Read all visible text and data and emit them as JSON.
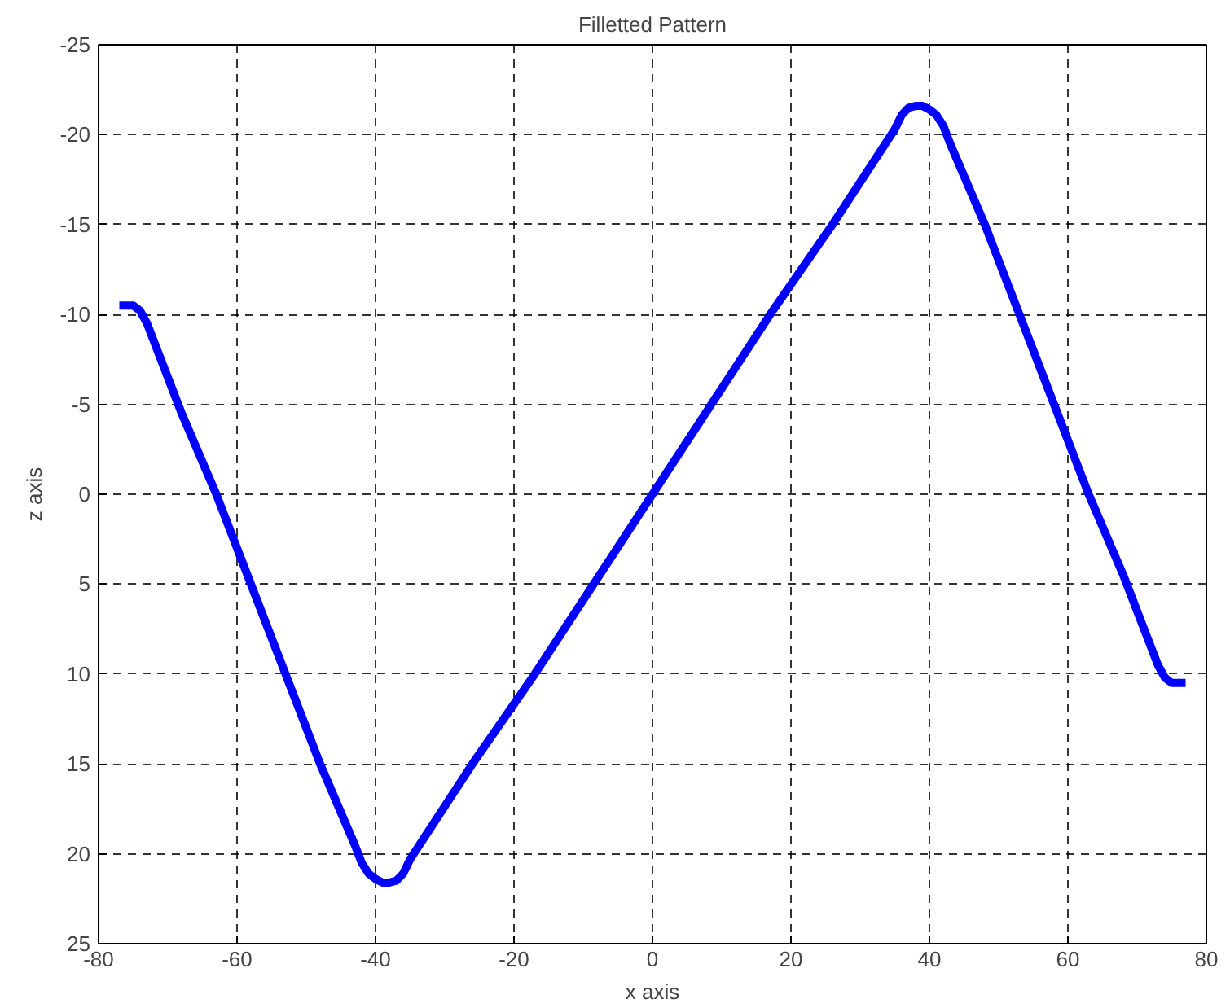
{
  "chart_data": {
    "type": "line",
    "title": "Filletted Pattern",
    "xlabel": "x axis",
    "ylabel": "z axis",
    "x": [
      -77,
      -75,
      -74,
      -73,
      -68,
      -63,
      -58,
      -53,
      -48,
      -43,
      -42,
      -41,
      -40,
      -39,
      -38,
      -37,
      -36,
      -35,
      -26,
      -17,
      0,
      17,
      26,
      35,
      36,
      37,
      38,
      39,
      40,
      41,
      42,
      43,
      48,
      53,
      58,
      63,
      68,
      73,
      74,
      75,
      77
    ],
    "series": [
      {
        "color": "#0000ff",
        "values": [
          -10.5,
          -10.5,
          -10.2,
          -9.5,
          -4.5,
          0,
          5,
          10,
          15,
          19.5,
          20.5,
          21.1,
          21.4,
          21.6,
          21.6,
          21.5,
          21.1,
          20.3,
          15,
          10,
          0,
          -10,
          -15,
          -20.3,
          -21.1,
          -21.5,
          -21.6,
          -21.6,
          -21.4,
          -21.1,
          -20.5,
          -19.5,
          -15,
          -10,
          -5,
          0,
          4.5,
          9.5,
          10.2,
          10.5,
          10.5
        ]
      }
    ],
    "xlim": [
      -80,
      80
    ],
    "ylim": [
      25,
      -25
    ],
    "xticks": [
      -80,
      -60,
      -40,
      -20,
      0,
      20,
      40,
      60,
      80
    ],
    "yticks": [
      -25,
      -20,
      -15,
      -10,
      -5,
      0,
      5,
      10,
      15,
      20,
      25
    ],
    "grid": true,
    "line_style": "solid",
    "marker": "none"
  }
}
